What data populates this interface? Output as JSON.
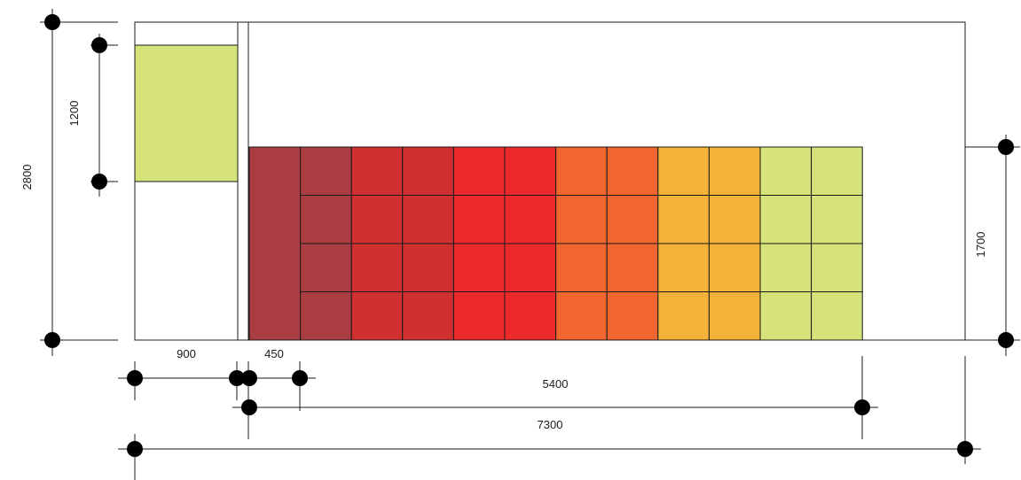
{
  "colors": {
    "wall": "#eceeee",
    "outline": "#1a1a1a",
    "green_panel": "#d6e27a",
    "dot": "#000000",
    "tile_columns": [
      "#a93d42",
      "#a93d42",
      "#d0302f",
      "#d0302f",
      "#ec2a2b",
      "#ec2a2b",
      "#f0662e",
      "#f0662e",
      "#f4b338",
      "#f4b338",
      "#d6e27a",
      "#d6e27a"
    ]
  },
  "tile_grid": {
    "rows": 4,
    "columns": 12,
    "first_column_merged": true
  },
  "dimensions": {
    "overall_height": "2800",
    "panel_height": "1200",
    "tile_area_height": "1700",
    "panel_width": "900",
    "tile_width": "450",
    "tile_area_width": "5400",
    "overall_width": "7300"
  }
}
